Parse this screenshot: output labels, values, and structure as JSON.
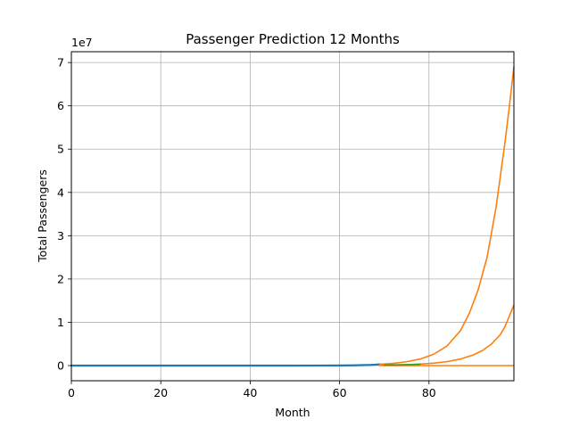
{
  "chart_data": {
    "type": "line",
    "title": "Passenger Prediction 12 Months",
    "xlabel": "Month",
    "ylabel": "Total Passengers",
    "y_offset_label": "1e7",
    "y_scale": 10000000,
    "xlim": [
      0,
      99
    ],
    "ylim": [
      -3500000,
      72500000
    ],
    "grid": true,
    "x_ticks": [
      0,
      20,
      40,
      60,
      80
    ],
    "y_ticks": [
      0,
      10000000,
      20000000,
      30000000,
      40000000,
      50000000,
      60000000,
      70000000
    ],
    "y_tick_labels": [
      "0",
      "1",
      "2",
      "3",
      "4",
      "5",
      "6",
      "7"
    ],
    "colors": {
      "history": "#1f77b4",
      "forecast": "#ff7f0e",
      "fitted": "#2ca02c"
    },
    "series": [
      {
        "color_key": "history",
        "x": [
          0,
          10,
          20,
          30,
          40,
          50,
          55,
          60,
          63,
          65,
          67,
          68,
          69
        ],
        "y": [
          0,
          0,
          0,
          0,
          0,
          0,
          10000,
          30000,
          60000,
          100000,
          160000,
          220000,
          300000
        ]
      },
      {
        "color_key": "forecast",
        "x": [
          69,
          72,
          75,
          78,
          81,
          84,
          87,
          89,
          91,
          93,
          95,
          96,
          97,
          98,
          99
        ],
        "y": [
          300000,
          500000,
          900000,
          1500000,
          2600000,
          4500000,
          8000000,
          12000000,
          17500000,
          25000000,
          36500000,
          44000000,
          51500000,
          60000000,
          69000000
        ]
      },
      {
        "color_key": "forecast",
        "x": [
          69,
          72,
          75,
          78,
          81,
          84,
          87,
          90,
          92,
          94,
          96,
          97,
          98,
          99
        ],
        "y": [
          100000,
          150000,
          200000,
          350000,
          550000,
          900000,
          1500000,
          2500000,
          3500000,
          5000000,
          7200000,
          9000000,
          11500000,
          14000000
        ]
      },
      {
        "color_key": "forecast",
        "x": [
          69,
          75,
          80,
          85,
          90,
          95,
          99
        ],
        "y": [
          0,
          0,
          0,
          0,
          0,
          0,
          0
        ]
      },
      {
        "color_key": "fitted",
        "x": [
          70,
          72,
          74,
          76,
          78
        ],
        "y": [
          120000,
          150000,
          200000,
          250000,
          300000
        ]
      }
    ]
  }
}
